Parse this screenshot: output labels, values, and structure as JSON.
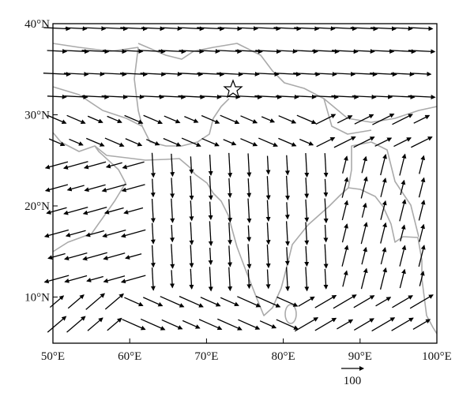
{
  "map": {
    "lat_labels": [
      "40°N",
      "30°N",
      "20°N",
      "10°N"
    ],
    "lon_labels": [
      "50°E",
      "60°E",
      "70°E",
      "80°E",
      "90°E",
      "100°E"
    ],
    "reference_label": "100"
  }
}
